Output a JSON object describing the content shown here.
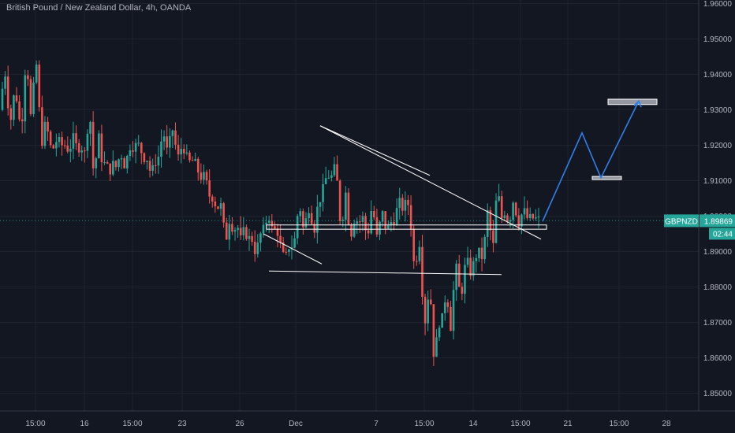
{
  "header": {
    "title": "British Pound / New Zealand Dollar, 4h, OANDA"
  },
  "price_tag": {
    "symbol": "GBPNZD",
    "price": "1.89869",
    "countdown": "02:44"
  },
  "colors": {
    "background": "#131722",
    "grid": "#1f2330",
    "up": "#26a69a",
    "down": "#ef5350",
    "drawing": "#ffffff",
    "projection": "#2f80ed",
    "tag": "#26a69a"
  },
  "chart_data": {
    "type": "candlestick",
    "title": "British Pound / New Zealand Dollar, 4h, OANDA",
    "ylim": [
      1.845,
      1.961
    ],
    "y_ticks": [
      "1.96000",
      "1.95000",
      "1.94000",
      "1.93000",
      "1.92000",
      "1.91000",
      "1.90000",
      "1.89000",
      "1.88000",
      "1.87000",
      "1.86000",
      "1.85000"
    ],
    "x_ticks": [
      "15:00",
      "16",
      "15:00",
      "23",
      "26",
      "Dec",
      "7",
      "15:00",
      "14",
      "15:00",
      "21",
      "15:00",
      "28"
    ],
    "grid": true,
    "last_price": 1.89869,
    "waypoints": [
      [
        1.93,
        1.942
      ],
      [
        1.925,
        1.934
      ],
      [
        1.928,
        1.95
      ],
      [
        1.918,
        1.924
      ],
      [
        1.92,
        1.92
      ],
      [
        1.922,
        1.918
      ],
      [
        1.912,
        1.931
      ],
      [
        1.915,
        1.912
      ],
      [
        1.913,
        1.918
      ],
      [
        1.92,
        1.922
      ],
      [
        1.915,
        1.911
      ],
      [
        1.918,
        1.927
      ],
      [
        1.916,
        1.921
      ],
      [
        1.914,
        1.914
      ],
      [
        1.905,
        1.908
      ],
      [
        1.902,
        1.893
      ],
      [
        1.893,
        1.899
      ],
      [
        1.894,
        1.889
      ],
      [
        1.897,
        1.903
      ],
      [
        1.887,
        1.888
      ],
      [
        1.896,
        1.904
      ],
      [
        1.897,
        1.902
      ],
      [
        1.916,
        1.912
      ],
      [
        1.907,
        1.893
      ],
      [
        1.897,
        1.899
      ],
      [
        1.893,
        1.903
      ],
      [
        1.897,
        1.898
      ],
      [
        1.907,
        1.903
      ],
      [
        1.893,
        1.877
      ],
      [
        1.872,
        1.859
      ],
      [
        1.868,
        1.884
      ],
      [
        1.881,
        1.886
      ],
      [
        1.888,
        1.89
      ],
      [
        1.891,
        1.909
      ],
      [
        1.906,
        1.898
      ],
      [
        1.901,
        1.899
      ],
      [
        1.8987,
        1.8987
      ]
    ],
    "drawings": {
      "descending_trendline": [
        [
          1.9255,
          1.8935
        ]
      ],
      "upper_channel": [
        [
          1.9255,
          1.9115
        ]
      ],
      "lower_wedge": [
        [
          1.895,
          1.8865
        ]
      ],
      "support_line": [
        [
          1.8845,
          1.8835
        ]
      ],
      "horizontal_zone": [
        1.8963,
        1.8975
      ],
      "target_zone_1": [
        1.9105,
        1.9112
      ],
      "target_zone_2": [
        1.9315,
        1.933
      ],
      "projection_path": [
        1.8985,
        1.9235,
        1.9108,
        1.9325
      ]
    }
  }
}
